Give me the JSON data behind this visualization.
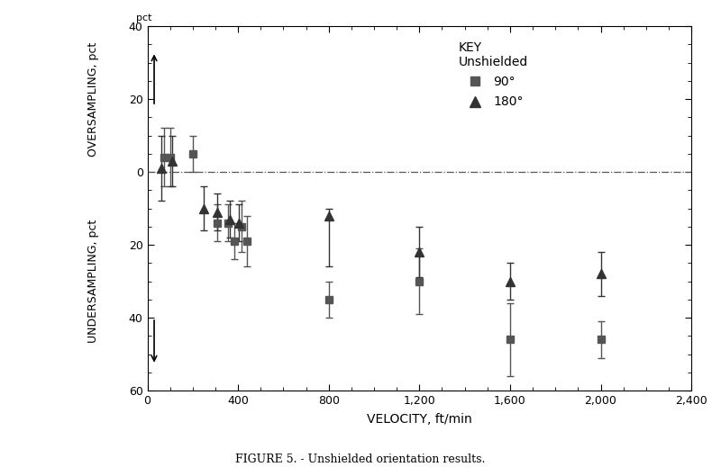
{
  "title": "FIGURE 5. - Unshielded orientation results.",
  "xlabel": "VELOCITY, ft/min",
  "ylabel_bottom": "UNDERSAMPLING, pct",
  "ylabel_top": "OVERSAMPLING, pct",
  "xlim": [
    0,
    2400
  ],
  "ylim": [
    60,
    -40
  ],
  "yticks": [
    -40,
    -20,
    0,
    20,
    40,
    60
  ],
  "yticklabels": [
    "40",
    "20",
    "0",
    "20",
    "40",
    "60"
  ],
  "xticks": [
    0,
    400,
    800,
    1200,
    1600,
    2000,
    2400
  ],
  "xticklabels": [
    "0",
    "400",
    "800",
    "1,200",
    "1,600",
    "2,000",
    "2,400"
  ],
  "color_sq": "#555555",
  "color_tri": "#333333",
  "sq90_x": [
    75,
    100,
    200,
    310,
    355,
    385,
    415,
    440,
    800,
    1200,
    1600,
    2000
  ],
  "sq90_y": [
    -4,
    -4,
    -5,
    14,
    14,
    19,
    15,
    19,
    35,
    30,
    46,
    46
  ],
  "sq90_elo": [
    8,
    8,
    5,
    5,
    5,
    5,
    7,
    7,
    5,
    9,
    10,
    5
  ],
  "sq90_ehi": [
    8,
    8,
    5,
    5,
    5,
    5,
    7,
    7,
    5,
    9,
    10,
    5
  ],
  "tri180_x": [
    60,
    110,
    250,
    310,
    365,
    405,
    800,
    1200,
    1600,
    2000
  ],
  "tri180_y": [
    -1,
    -3,
    10,
    11,
    13,
    14,
    12,
    22,
    30,
    28
  ],
  "tri180_elo": [
    9,
    7,
    6,
    5,
    5,
    5,
    2,
    7,
    5,
    6
  ],
  "tri180_ehi": [
    9,
    7,
    6,
    5,
    5,
    5,
    14,
    7,
    5,
    6
  ],
  "background_color": "#ffffff",
  "key_title": "KEY",
  "key_sub": "Unshielded",
  "key_90": "90°",
  "key_180": "180°"
}
